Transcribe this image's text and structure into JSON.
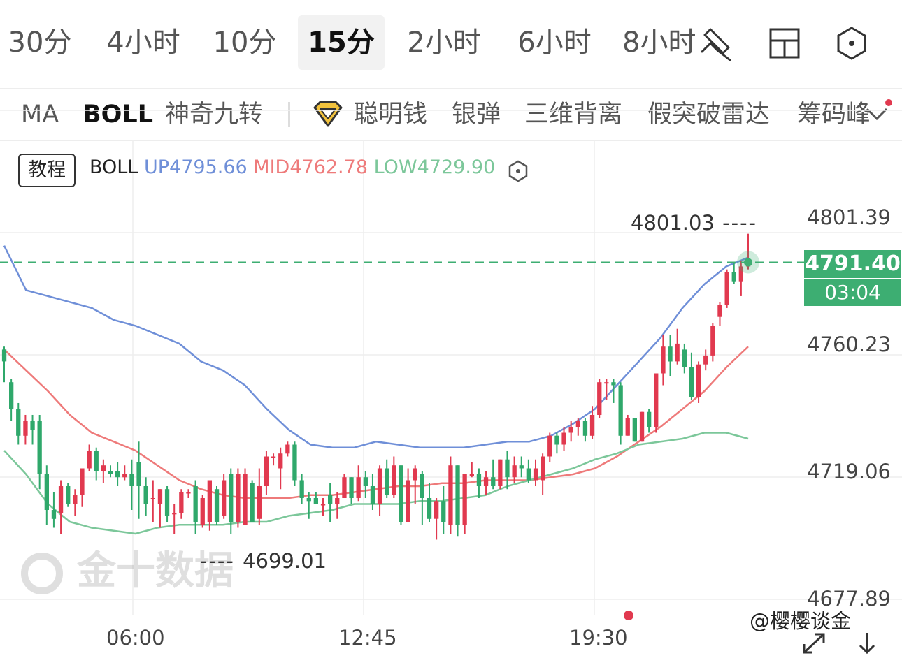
{
  "periods": [
    "30分",
    "4小时",
    "10分",
    "15分",
    "2小时",
    "6小时",
    "8小时"
  ],
  "active_period": "15分",
  "toolbar_icons": [
    "draw-tool-icon",
    "layout-grid-icon",
    "settings-hexagon-icon"
  ],
  "indicators": {
    "items": [
      "MA",
      "BOLL",
      "神奇九转",
      "聪明钱",
      "银弹",
      "三维背离",
      "假突破雷达",
      "筹码峰"
    ],
    "active": "BOLL",
    "smart_money_icon": "diamond-icon",
    "more_icon": "chevron-down-icon"
  },
  "legend": {
    "tutorial": "教程",
    "name": "BOLL",
    "up_label": "UP",
    "up": "4795.66",
    "mid_label": "MID",
    "mid": "4762.78",
    "low_label": "LOW",
    "low": "4729.90",
    "settings_icon": "hexagon-settings-icon"
  },
  "colors": {
    "up_band": "#6f8fd8",
    "mid_band": "#ee7a7a",
    "low_band": "#7cc79a",
    "rise": "#e1394f",
    "fall": "#2fa86b",
    "last_price_bg": "#3dae72"
  },
  "last_price": {
    "price": "4791.40",
    "countdown": "03:04"
  },
  "annotations": {
    "high": "4801.03",
    "low": "4699.01"
  },
  "watermark": "金十数据",
  "source_watermark": "@樱樱谈金",
  "chart_data": {
    "type": "candlestick",
    "title": "",
    "y_ticks": [
      "4801.39",
      "4760.23",
      "4719.06",
      "4677.89"
    ],
    "x_ticks": [
      "06:00",
      "12:45",
      "19:30"
    ],
    "ylim": [
      4677.89,
      4801.39
    ],
    "grid": true,
    "high_marker": 4801.03,
    "low_marker": 4699.01,
    "last_price": 4791.4,
    "candles": [
      [
        4762,
        4758,
        4763,
        4751
      ],
      [
        4751,
        4742,
        4752,
        4738
      ],
      [
        4742,
        4733,
        4744,
        4730
      ],
      [
        4733,
        4738,
        4740,
        4730
      ],
      [
        4738,
        4735,
        4740,
        4730
      ],
      [
        4738,
        4720,
        4740,
        4715
      ],
      [
        4720,
        4708,
        4723,
        4703
      ],
      [
        4708,
        4705,
        4714,
        4702
      ],
      [
        4707,
        4716,
        4718,
        4700
      ],
      [
        4716,
        4710,
        4717,
        4709
      ],
      [
        4710,
        4713,
        4715,
        4706
      ],
      [
        4713,
        4722,
        4722,
        4709
      ],
      [
        4722,
        4728,
        4730,
        4721
      ],
      [
        4728,
        4721,
        4729,
        4718
      ],
      [
        4721,
        4723,
        4725,
        4717
      ],
      [
        4721,
        4720,
        4723,
        4719
      ],
      [
        4721,
        4719,
        4724,
        4716
      ],
      [
        4719,
        4720,
        4723,
        4718
      ],
      [
        4720,
        4716,
        4725,
        4708
      ],
      [
        4724,
        4716,
        4731,
        4705
      ],
      [
        4716,
        4710,
        4719,
        4706
      ],
      [
        4712,
        4712,
        4718,
        4704
      ],
      [
        4710,
        4715,
        4715,
        4702
      ],
      [
        4715,
        4706,
        4716,
        4704
      ],
      [
        4707,
        4707,
        4710,
        4700
      ],
      [
        4707,
        4714,
        4715,
        4705
      ],
      [
        4714,
        4714,
        4715,
        4712
      ],
      [
        4716,
        4704,
        4718,
        4700
      ],
      [
        4703,
        4712,
        4713,
        4702
      ],
      [
        4704,
        4718,
        4718,
        4701
      ],
      [
        4715,
        4704,
        4716,
        4703
      ],
      [
        4706,
        4718,
        4720,
        4705
      ],
      [
        4720,
        4704,
        4722,
        4700
      ],
      [
        4704,
        4720,
        4722,
        4702
      ],
      [
        4703,
        4720,
        4722,
        4703
      ],
      [
        4717,
        4704,
        4718,
        4704
      ],
      [
        4705,
        4716,
        4722,
        4703
      ],
      [
        4716,
        4726,
        4728,
        4713
      ],
      [
        4726,
        4726,
        4727,
        4723
      ],
      [
        4722,
        4727,
        4729,
        4715
      ],
      [
        4727,
        4730,
        4731,
        4726
      ],
      [
        4730,
        4718,
        4731,
        4716
      ],
      [
        4718,
        4712,
        4720,
        4710
      ],
      [
        4712,
        4711,
        4714,
        4705
      ],
      [
        4712,
        4710,
        4714,
        4710
      ],
      [
        4710,
        4710,
        4712,
        4706
      ],
      [
        4713,
        4710,
        4717,
        4704
      ],
      [
        4710,
        4712,
        4714,
        4705
      ],
      [
        4712,
        4719,
        4720,
        4712
      ],
      [
        4719,
        4712,
        4719,
        4710
      ],
      [
        4712,
        4719,
        4723,
        4711
      ],
      [
        4719,
        4716,
        4721,
        4712
      ],
      [
        4716,
        4710,
        4720,
        4708
      ],
      [
        4710,
        4722,
        4723,
        4706
      ],
      [
        4722,
        4713,
        4725,
        4712
      ],
      [
        4713,
        4723,
        4726,
        4712
      ],
      [
        4723,
        4704,
        4723,
        4703
      ],
      [
        4704,
        4718,
        4722,
        4707
      ],
      [
        4718,
        4722,
        4723,
        4710
      ],
      [
        4720,
        4712,
        4721,
        4703
      ],
      [
        4712,
        4705,
        4717,
        4704
      ],
      [
        4705,
        4711,
        4712,
        4698
      ],
      [
        4711,
        4704,
        4716,
        4700
      ],
      [
        4703,
        4723,
        4726,
        4700
      ],
      [
        4723,
        4703,
        4723,
        4699
      ],
      [
        4703,
        4720,
        4720,
        4700
      ],
      [
        4720,
        4720,
        4724,
        4719
      ],
      [
        4720,
        4716,
        4722,
        4712
      ],
      [
        4716,
        4719,
        4721,
        4713
      ],
      [
        4719,
        4716,
        4725,
        4715
      ],
      [
        4716,
        4725,
        4725,
        4715
      ],
      [
        4725,
        4719,
        4728,
        4715
      ],
      [
        4719,
        4723,
        4726,
        4717
      ],
      [
        4723,
        4722,
        4726,
        4719
      ],
      [
        4722,
        4718,
        4725,
        4717
      ],
      [
        4718,
        4722,
        4725,
        4716
      ],
      [
        4718,
        4726,
        4727,
        4713
      ],
      [
        4726,
        4733,
        4734,
        4724
      ],
      [
        4733,
        4730,
        4734,
        4727
      ],
      [
        4730,
        4734,
        4736,
        4728
      ],
      [
        4734,
        4736,
        4738,
        4731
      ],
      [
        4736,
        4738,
        4739,
        4733
      ],
      [
        4738,
        4733,
        4739,
        4731
      ],
      [
        4733,
        4740,
        4743,
        4732
      ],
      [
        4740,
        4751,
        4752,
        4739
      ],
      [
        4751,
        4751,
        4752,
        4745
      ],
      [
        4751,
        4750,
        4752,
        4744
      ],
      [
        4750,
        4733,
        4751,
        4730
      ],
      [
        4733,
        4739,
        4740,
        4733
      ],
      [
        4739,
        4731,
        4739,
        4731
      ],
      [
        4731,
        4741,
        4741,
        4731
      ],
      [
        4741,
        4736,
        4742,
        4734
      ],
      [
        4736,
        4754,
        4754,
        4734
      ],
      [
        4754,
        4763,
        4767,
        4750
      ],
      [
        4763,
        4758,
        4767,
        4753
      ],
      [
        4758,
        4764,
        4769,
        4757
      ],
      [
        4762,
        4756,
        4764,
        4754
      ],
      [
        4756,
        4746,
        4761,
        4745
      ],
      [
        4746,
        4757,
        4758,
        4744
      ],
      [
        4757,
        4760,
        4762,
        4755
      ],
      [
        4760,
        4770,
        4771,
        4758
      ],
      [
        4773,
        4777,
        4778,
        4770
      ],
      [
        4777,
        4788,
        4789,
        4776
      ],
      [
        4788,
        4785,
        4791,
        4784
      ],
      [
        4785,
        4790,
        4792,
        4780
      ],
      [
        4790,
        4791,
        4801,
        4789
      ]
    ],
    "boll_up": [
      4797,
      4782,
      4780,
      4778,
      4776,
      4772,
      4770,
      4767,
      4764,
      4758,
      4755,
      4750,
      4742,
      4735,
      4730,
      4729,
      4729,
      4731,
      4730,
      4729,
      4729,
      4729,
      4730,
      4731,
      4731,
      4733,
      4737,
      4742,
      4750,
      4758,
      4766,
      4776,
      4784,
      4790,
      4793
    ],
    "boll_mid": [
      4762,
      4755,
      4748,
      4740,
      4734,
      4731,
      4728,
      4723,
      4718,
      4715,
      4713,
      4712,
      4712,
      4712,
      4713,
      4713,
      4714,
      4715,
      4716,
      4716,
      4717,
      4717,
      4718,
      4718,
      4718,
      4719,
      4720,
      4722,
      4726,
      4731,
      4736,
      4742,
      4748,
      4756,
      4763
    ],
    "boll_low": [
      4728,
      4720,
      4710,
      4704,
      4702,
      4701,
      4700,
      4702,
      4703,
      4703,
      4703,
      4704,
      4704,
      4706,
      4707,
      4708,
      4710,
      4710,
      4710,
      4711,
      4711,
      4712,
      4713,
      4716,
      4718,
      4720,
      4722,
      4725,
      4727,
      4730,
      4731,
      4732,
      4734,
      4734,
      4732
    ]
  }
}
